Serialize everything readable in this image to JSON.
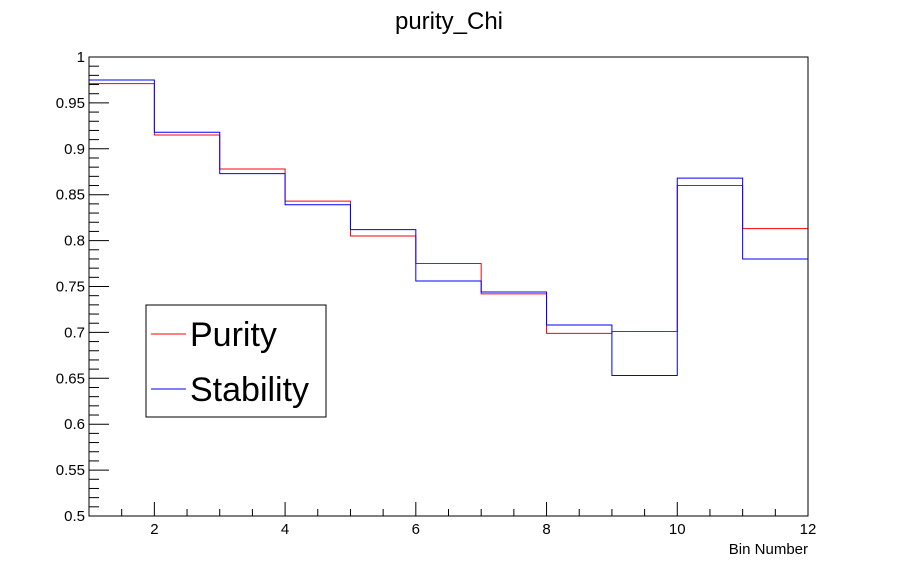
{
  "chart_data": {
    "type": "line",
    "style": "step",
    "title": "purity_Chi",
    "xlabel": "Bin Number",
    "ylabel": "",
    "xlim": [
      1,
      12
    ],
    "ylim": [
      0.5,
      1.0
    ],
    "grid": false,
    "legend_position": "left, lower-middle",
    "x_ticks": [
      "2",
      "4",
      "6",
      "8",
      "10",
      "12"
    ],
    "y_ticks": [
      "0.5",
      "0.55",
      "0.6",
      "0.65",
      "0.7",
      "0.75",
      "0.8",
      "0.85",
      "0.9",
      "0.95",
      "1"
    ],
    "bin_edges": [
      1,
      2,
      3,
      4,
      5,
      6,
      7,
      8,
      9,
      10,
      11,
      12
    ],
    "series": [
      {
        "name": "Purity",
        "color": "#ff0000",
        "values": [
          0.971,
          0.915,
          0.878,
          0.843,
          0.805,
          0.775,
          0.742,
          0.699,
          0.701,
          0.86,
          0.813
        ]
      },
      {
        "name": "Stability",
        "color": "#0000ff",
        "values": [
          0.975,
          0.918,
          0.873,
          0.839,
          0.812,
          0.756,
          0.744,
          0.708,
          0.653,
          0.868,
          0.78
        ]
      }
    ]
  }
}
